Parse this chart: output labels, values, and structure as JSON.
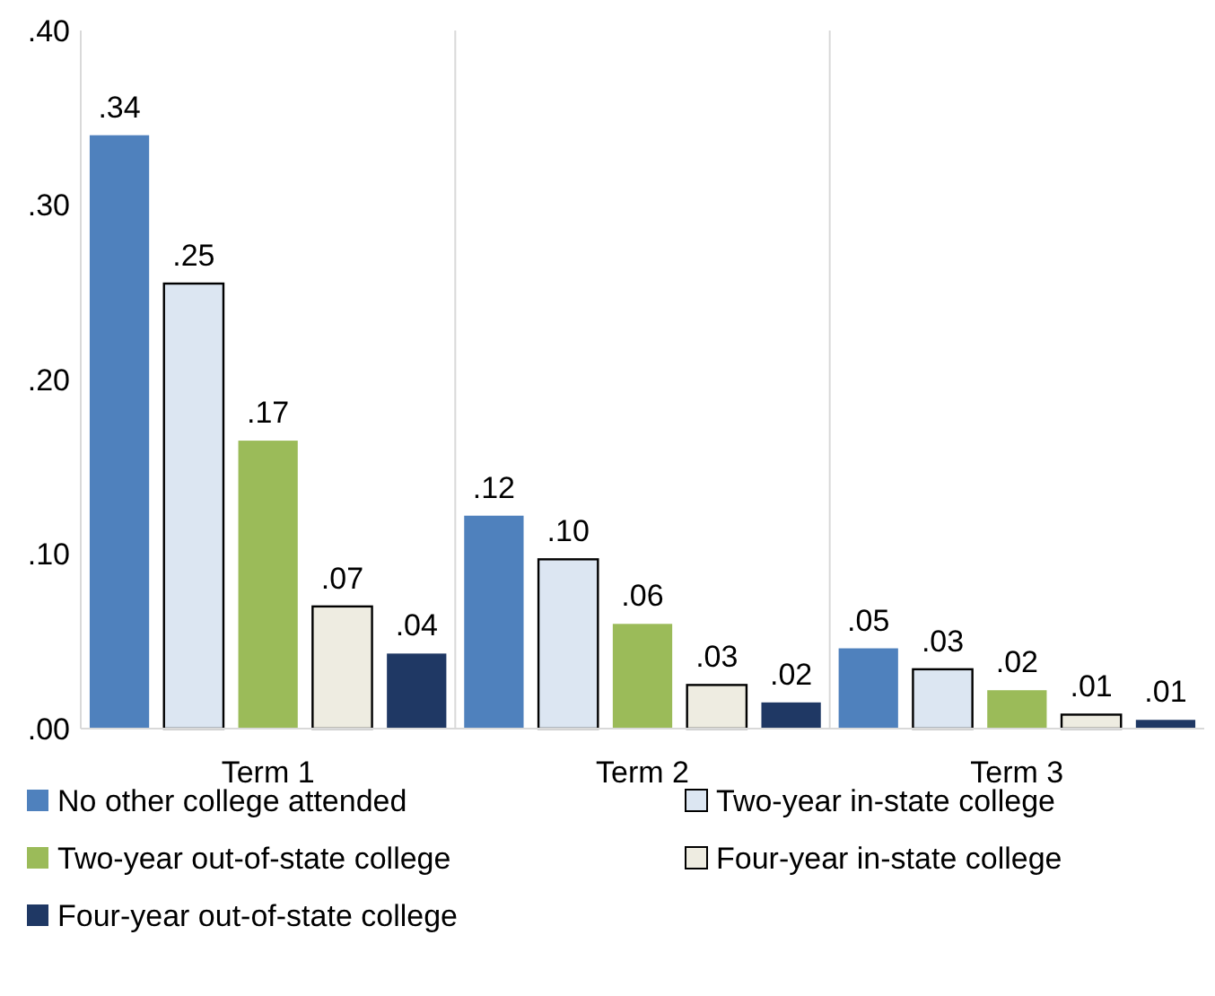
{
  "chart_data": {
    "type": "bar",
    "categories": [
      "Term 1",
      "Term 2",
      "Term 3"
    ],
    "series": [
      {
        "name": "No other college attended",
        "color": "#4f81bd",
        "values": [
          0.34,
          0.122,
          0.046
        ],
        "value_labels": [
          ".34",
          ".12",
          ".05"
        ]
      },
      {
        "name": "Two-year in-state college",
        "color": "#dce6f2",
        "values": [
          0.255,
          0.097,
          0.034
        ],
        "value_labels": [
          ".25",
          ".10",
          ".03"
        ]
      },
      {
        "name": "Two-year out-of-state college",
        "color": "#9bbb59",
        "values": [
          0.165,
          0.06,
          0.022
        ],
        "value_labels": [
          ".17",
          ".06",
          ".02"
        ]
      },
      {
        "name": "Four-year in-state college",
        "color": "#eeece1",
        "values": [
          0.07,
          0.025,
          0.008
        ],
        "value_labels": [
          ".07",
          ".03",
          ".01"
        ]
      },
      {
        "name": "Four-year out-of-state college",
        "color": "#1f3864",
        "values": [
          0.043,
          0.015,
          0.005
        ],
        "value_labels": [
          ".04",
          ".02",
          ".01"
        ]
      }
    ],
    "ylim": [
      0,
      0.4
    ],
    "yticks": [
      {
        "value": 0,
        "label": ".00"
      },
      {
        "value": 0.1,
        "label": ".10"
      },
      {
        "value": 0.2,
        "label": ".20"
      },
      {
        "value": 0.3,
        "label": ".30"
      },
      {
        "value": 0.4,
        "label": ".40"
      }
    ],
    "grid": "x",
    "legend": "bottom"
  }
}
